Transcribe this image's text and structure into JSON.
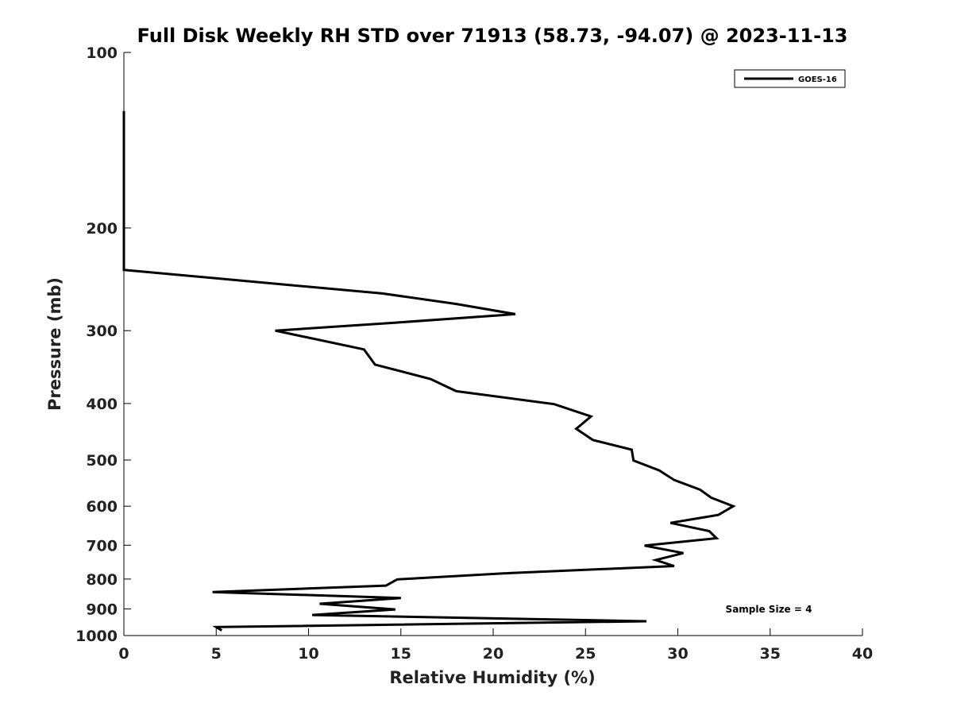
{
  "chart_data": {
    "type": "line",
    "title": "Full Disk Weekly RH STD over 71913 (58.73, -94.07) @ 2023-11-13",
    "xlabel": "Relative Humidity (%)",
    "ylabel": "Pressure (mb)",
    "xlim": [
      0,
      40
    ],
    "ylim": [
      100,
      1000
    ],
    "y_scale": "log",
    "y_inverted": true,
    "x_ticks": [
      0,
      5,
      10,
      15,
      20,
      25,
      30,
      35,
      40
    ],
    "y_ticks": [
      100,
      200,
      300,
      400,
      500,
      600,
      700,
      800,
      900,
      1000
    ],
    "grid": false,
    "legend_position": "top-right",
    "annotation": "Sample Size = 4",
    "series": [
      {
        "name": "GOES-16",
        "color": "#000000",
        "points": [
          [
            0,
            126
          ],
          [
            0,
            150
          ],
          [
            0,
            175
          ],
          [
            0,
            200
          ],
          [
            0,
            225
          ],
          [
            0,
            236
          ],
          [
            14.0,
            259
          ],
          [
            18.0,
            270
          ],
          [
            21.2,
            281
          ],
          [
            14.5,
            291
          ],
          [
            8.2,
            300
          ],
          [
            13.0,
            323
          ],
          [
            13.6,
            343
          ],
          [
            16.6,
            363
          ],
          [
            18.0,
            381
          ],
          [
            23.3,
            401
          ],
          [
            25.3,
            421
          ],
          [
            24.5,
            442
          ],
          [
            25.4,
            462
          ],
          [
            27.5,
            480
          ],
          [
            27.6,
            501
          ],
          [
            29.0,
            521
          ],
          [
            29.8,
            541
          ],
          [
            31.2,
            562
          ],
          [
            31.8,
            580
          ],
          [
            33.0,
            600
          ],
          [
            32.2,
            621
          ],
          [
            29.6,
            641
          ],
          [
            31.7,
            662
          ],
          [
            32.1,
            681
          ],
          [
            28.2,
            701
          ],
          [
            30.3,
            722
          ],
          [
            28.8,
            742
          ],
          [
            29.8,
            760
          ],
          [
            21.0,
            781
          ],
          [
            14.8,
            801
          ],
          [
            14.2,
            821
          ],
          [
            4.8,
            842
          ],
          [
            15.0,
            862
          ],
          [
            10.6,
            882
          ],
          [
            14.7,
            902
          ],
          [
            10.2,
            922
          ],
          [
            28.3,
            945
          ],
          [
            5.0,
            967
          ],
          [
            5.3,
            980
          ]
        ]
      }
    ]
  }
}
